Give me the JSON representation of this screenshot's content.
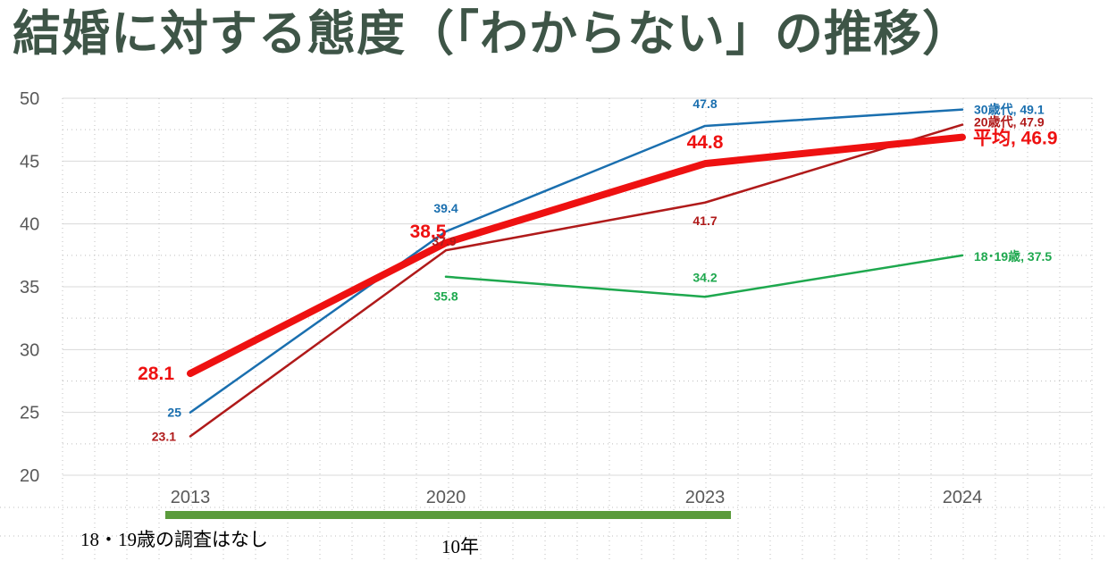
{
  "title": "結婚に対する態度（「わからない」の推移）",
  "chart_data": {
    "type": "line",
    "title": "結婚に対する態度（「わからない」の推移）",
    "categories": [
      "2013",
      "2020",
      "2023",
      "2024"
    ],
    "ylim": [
      20,
      50
    ],
    "yticks": [
      20,
      25,
      30,
      35,
      40,
      45,
      50
    ],
    "grid": true,
    "series": [
      {
        "key": "s30",
        "name": "30歳代",
        "color": "#1a6faf",
        "values": [
          25,
          39.4,
          47.8,
          49.1
        ],
        "labels": [
          "25",
          "39.4",
          "47.8",
          "30歳代, 49.1"
        ]
      },
      {
        "key": "s20",
        "name": "20歳代",
        "color": "#b01a1a",
        "values": [
          23.1,
          37.9,
          41.7,
          47.9
        ],
        "labels": [
          "23.1",
          "37.9",
          "41.7",
          "20歳代, 47.9"
        ]
      },
      {
        "key": "s1819",
        "name": "18･19歳",
        "color": "#1ea84e",
        "values": [
          null,
          35.8,
          34.2,
          37.5
        ],
        "labels": [
          "",
          "35.8",
          "34.2",
          "18･19歳, 37.5"
        ]
      },
      {
        "key": "avg",
        "name": "平均",
        "color": "#ee1111",
        "values": [
          28.1,
          38.5,
          44.8,
          46.9
        ],
        "labels": [
          "28.1",
          "38.5",
          "44.8",
          "平均, 46.9"
        ]
      }
    ]
  },
  "notes": {
    "no_survey": "18・19歳の調査はなし",
    "span": "10年"
  },
  "colors": {
    "title": "#3e5547",
    "span_bar": "#5b9b3c"
  }
}
